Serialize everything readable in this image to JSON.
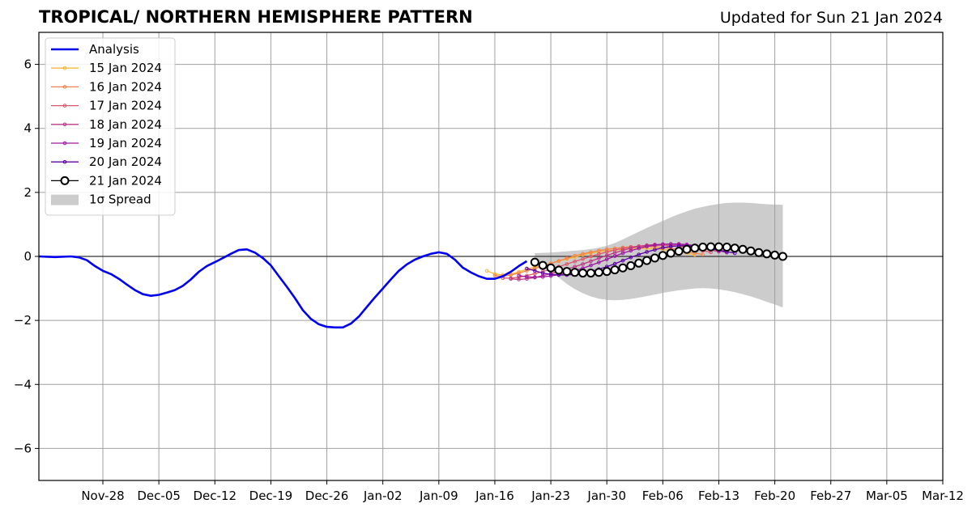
{
  "chart_data": {
    "type": "line",
    "title": "TROPICAL/ NORTHERN HEMISPHERE PATTERN",
    "subtitle": "Updated for Sun 21 Jan 2024",
    "xlabel": "",
    "ylabel": "",
    "x_start": "2023-11-20",
    "x_end": "2024-03-12",
    "ylim": [
      -7,
      7
    ],
    "yticks": [
      -6,
      -4,
      -2,
      0,
      2,
      4,
      6
    ],
    "ytick_labels": [
      "−6",
      "−4",
      "−2",
      "0",
      "2",
      "4",
      "6"
    ],
    "xticks": [
      "2023-11-28",
      "2023-12-05",
      "2023-12-12",
      "2023-12-19",
      "2023-12-26",
      "2024-01-02",
      "2024-01-09",
      "2024-01-16",
      "2024-01-23",
      "2024-01-30",
      "2024-02-06",
      "2024-02-13",
      "2024-02-20",
      "2024-02-27",
      "2024-03-05",
      "2024-03-12"
    ],
    "xtick_labels": [
      "Nov-28",
      "Dec-05",
      "Dec-12",
      "Dec-19",
      "Dec-26",
      "Jan-02",
      "Jan-09",
      "Jan-16",
      "Jan-23",
      "Jan-30",
      "Feb-06",
      "Feb-13",
      "Feb-20",
      "Feb-27",
      "Mar-05",
      "Mar-12"
    ],
    "grid": true,
    "legend_position": "top-left",
    "analysis": {
      "name": "Analysis",
      "color": "#0000ee",
      "points": [
        [
          "2023-11-20",
          0.0
        ],
        [
          "2023-11-22",
          -0.02
        ],
        [
          "2023-11-24",
          0.0
        ],
        [
          "2023-11-25",
          -0.03
        ],
        [
          "2023-11-26",
          -0.12
        ],
        [
          "2023-11-27",
          -0.3
        ],
        [
          "2023-11-28",
          -0.45
        ],
        [
          "2023-11-29",
          -0.55
        ],
        [
          "2023-11-30",
          -0.7
        ],
        [
          "2023-12-01",
          -0.88
        ],
        [
          "2023-12-02",
          -1.05
        ],
        [
          "2023-12-03",
          -1.18
        ],
        [
          "2023-12-04",
          -1.23
        ],
        [
          "2023-12-05",
          -1.2
        ],
        [
          "2023-12-06",
          -1.13
        ],
        [
          "2023-12-07",
          -1.05
        ],
        [
          "2023-12-08",
          -0.92
        ],
        [
          "2023-12-09",
          -0.72
        ],
        [
          "2023-12-10",
          -0.48
        ],
        [
          "2023-12-11",
          -0.3
        ],
        [
          "2023-12-12",
          -0.18
        ],
        [
          "2023-12-13",
          -0.05
        ],
        [
          "2023-12-14",
          0.08
        ],
        [
          "2023-12-15",
          0.2
        ],
        [
          "2023-12-16",
          0.22
        ],
        [
          "2023-12-17",
          0.12
        ],
        [
          "2023-12-18",
          -0.05
        ],
        [
          "2023-12-19",
          -0.28
        ],
        [
          "2023-12-20",
          -0.62
        ],
        [
          "2023-12-21",
          -0.95
        ],
        [
          "2023-12-22",
          -1.3
        ],
        [
          "2023-12-23",
          -1.68
        ],
        [
          "2023-12-24",
          -1.95
        ],
        [
          "2023-12-25",
          -2.12
        ],
        [
          "2023-12-26",
          -2.2
        ],
        [
          "2023-12-27",
          -2.22
        ],
        [
          "2023-12-28",
          -2.22
        ],
        [
          "2023-12-29",
          -2.1
        ],
        [
          "2023-12-30",
          -1.88
        ],
        [
          "2023-12-31",
          -1.58
        ],
        [
          "2024-01-01",
          -1.28
        ],
        [
          "2024-01-02",
          -1.0
        ],
        [
          "2024-01-03",
          -0.72
        ],
        [
          "2024-01-04",
          -0.45
        ],
        [
          "2024-01-05",
          -0.25
        ],
        [
          "2024-01-06",
          -0.1
        ],
        [
          "2024-01-07",
          0.0
        ],
        [
          "2024-01-08",
          0.08
        ],
        [
          "2024-01-09",
          0.13
        ],
        [
          "2024-01-10",
          0.08
        ],
        [
          "2024-01-11",
          -0.1
        ],
        [
          "2024-01-12",
          -0.35
        ],
        [
          "2024-01-13",
          -0.5
        ],
        [
          "2024-01-14",
          -0.62
        ],
        [
          "2024-01-15",
          -0.7
        ],
        [
          "2024-01-16",
          -0.7
        ],
        [
          "2024-01-17",
          -0.62
        ],
        [
          "2024-01-18",
          -0.48
        ],
        [
          "2024-01-19",
          -0.3
        ],
        [
          "2024-01-20",
          -0.15
        ]
      ]
    },
    "forecasts": [
      {
        "name": "15 Jan 2024",
        "color": "#f9b73b",
        "start": "2024-01-15",
        "values": [
          -0.45,
          -0.55,
          -0.58,
          -0.55,
          -0.48,
          -0.4,
          -0.33,
          -0.28,
          -0.22,
          -0.15,
          -0.08,
          -0.02,
          0.05,
          0.1,
          0.14,
          0.18,
          0.2,
          0.22,
          0.24,
          0.25,
          0.25,
          0.24,
          0.22,
          0.18,
          0.14,
          0.1,
          0.05
        ]
      },
      {
        "name": "16 Jan 2024",
        "color": "#f2844b",
        "start": "2024-01-16",
        "values": [
          -0.6,
          -0.62,
          -0.58,
          -0.52,
          -0.45,
          -0.38,
          -0.3,
          -0.22,
          -0.14,
          -0.06,
          0.02,
          0.08,
          0.13,
          0.18,
          0.22,
          0.25,
          0.28,
          0.3,
          0.31,
          0.31,
          0.3,
          0.28,
          0.25,
          0.2,
          0.15,
          0.1,
          0.06
        ]
      },
      {
        "name": "17 Jan 2024",
        "color": "#d8576b",
        "start": "2024-01-17",
        "values": [
          -0.68,
          -0.68,
          -0.65,
          -0.6,
          -0.54,
          -0.47,
          -0.4,
          -0.32,
          -0.24,
          -0.16,
          -0.08,
          0.0,
          0.07,
          0.14,
          0.2,
          0.25,
          0.29,
          0.32,
          0.34,
          0.35,
          0.35,
          0.34,
          0.32,
          0.28,
          0.23,
          0.18,
          0.13
        ]
      },
      {
        "name": "18 Jan 2024",
        "color": "#bd3786",
        "start": "2024-01-18",
        "values": [
          -0.7,
          -0.72,
          -0.7,
          -0.66,
          -0.6,
          -0.54,
          -0.47,
          -0.4,
          -0.32,
          -0.24,
          -0.15,
          -0.06,
          0.03,
          0.11,
          0.19,
          0.26,
          0.31,
          0.35,
          0.37,
          0.38,
          0.38,
          0.37,
          0.34,
          0.3,
          0.25,
          0.2,
          0.15
        ]
      },
      {
        "name": "19 Jan 2024",
        "color": "#9c179e",
        "start": "2024-01-19",
        "values": [
          -0.6,
          -0.64,
          -0.65,
          -0.64,
          -0.61,
          -0.57,
          -0.52,
          -0.45,
          -0.37,
          -0.28,
          -0.19,
          -0.09,
          0.01,
          0.1,
          0.18,
          0.25,
          0.31,
          0.35,
          0.38,
          0.39,
          0.39,
          0.37,
          0.34,
          0.3,
          0.24,
          0.18,
          0.12
        ]
      },
      {
        "name": "20 Jan 2024",
        "color": "#5c01a6",
        "start": "2024-01-20",
        "values": [
          -0.38,
          -0.45,
          -0.52,
          -0.56,
          -0.58,
          -0.58,
          -0.56,
          -0.52,
          -0.47,
          -0.4,
          -0.32,
          -0.23,
          -0.13,
          -0.03,
          0.06,
          0.14,
          0.21,
          0.27,
          0.31,
          0.33,
          0.33,
          0.32,
          0.29,
          0.25,
          0.2,
          0.15,
          0.1
        ]
      },
      {
        "name": "21 Jan 2024",
        "color": "#000000",
        "marker": "open-circle",
        "start": "2024-01-21",
        "values": [
          -0.18,
          -0.28,
          -0.36,
          -0.43,
          -0.47,
          -0.5,
          -0.52,
          -0.52,
          -0.5,
          -0.47,
          -0.42,
          -0.36,
          -0.29,
          -0.21,
          -0.13,
          -0.05,
          0.03,
          0.1,
          0.16,
          0.22,
          0.26,
          0.29,
          0.3,
          0.3,
          0.29,
          0.26,
          0.22,
          0.17,
          0.12,
          0.08,
          0.04,
          0.0
        ]
      }
    ],
    "spread": {
      "name": "1σ Spread",
      "color": "#cccccc",
      "start": "2024-01-21",
      "upper": [
        0.1,
        0.11,
        0.12,
        0.14,
        0.16,
        0.18,
        0.2,
        0.23,
        0.27,
        0.33,
        0.42,
        0.53,
        0.65,
        0.77,
        0.89,
        1.0,
        1.11,
        1.22,
        1.32,
        1.41,
        1.49,
        1.55,
        1.6,
        1.64,
        1.67,
        1.68,
        1.68,
        1.67,
        1.65,
        1.63,
        1.62,
        1.61
      ],
      "lower": [
        -0.1,
        -0.25,
        -0.45,
        -0.66,
        -0.86,
        -1.02,
        -1.15,
        -1.25,
        -1.32,
        -1.36,
        -1.37,
        -1.36,
        -1.33,
        -1.29,
        -1.24,
        -1.19,
        -1.14,
        -1.1,
        -1.06,
        -1.03,
        -1.0,
        -0.99,
        -1.0,
        -1.03,
        -1.07,
        -1.12,
        -1.18,
        -1.25,
        -1.33,
        -1.42,
        -1.5,
        -1.6
      ]
    }
  }
}
